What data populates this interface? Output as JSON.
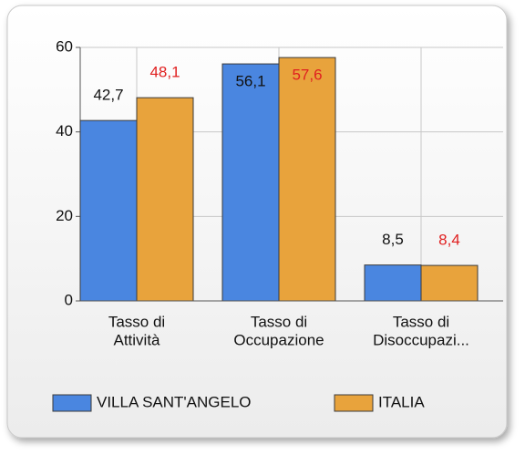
{
  "chart_data": {
    "type": "bar",
    "categories": [
      [
        "Tasso di",
        "Attività"
      ],
      [
        "Tasso di",
        "Occupazione"
      ],
      [
        "Tasso di",
        "Disoccupazi..."
      ]
    ],
    "series": [
      {
        "name": "VILLA SANT'ANGELO",
        "color": "#4a86e0",
        "label_color": "#111111",
        "values": [
          42.7,
          56.1,
          8.5
        ],
        "value_labels": [
          "42,7",
          "56,1",
          "8,5"
        ]
      },
      {
        "name": "ITALIA",
        "color": "#e8a33c",
        "label_color": "#e02020",
        "values": [
          48.1,
          57.6,
          8.4
        ],
        "value_labels": [
          "48,1",
          "57,6",
          "8,4"
        ]
      }
    ],
    "ylim": [
      0,
      60
    ],
    "yticks": [
      0,
      20,
      40,
      60
    ],
    "grid": true,
    "legend": "bottom"
  }
}
